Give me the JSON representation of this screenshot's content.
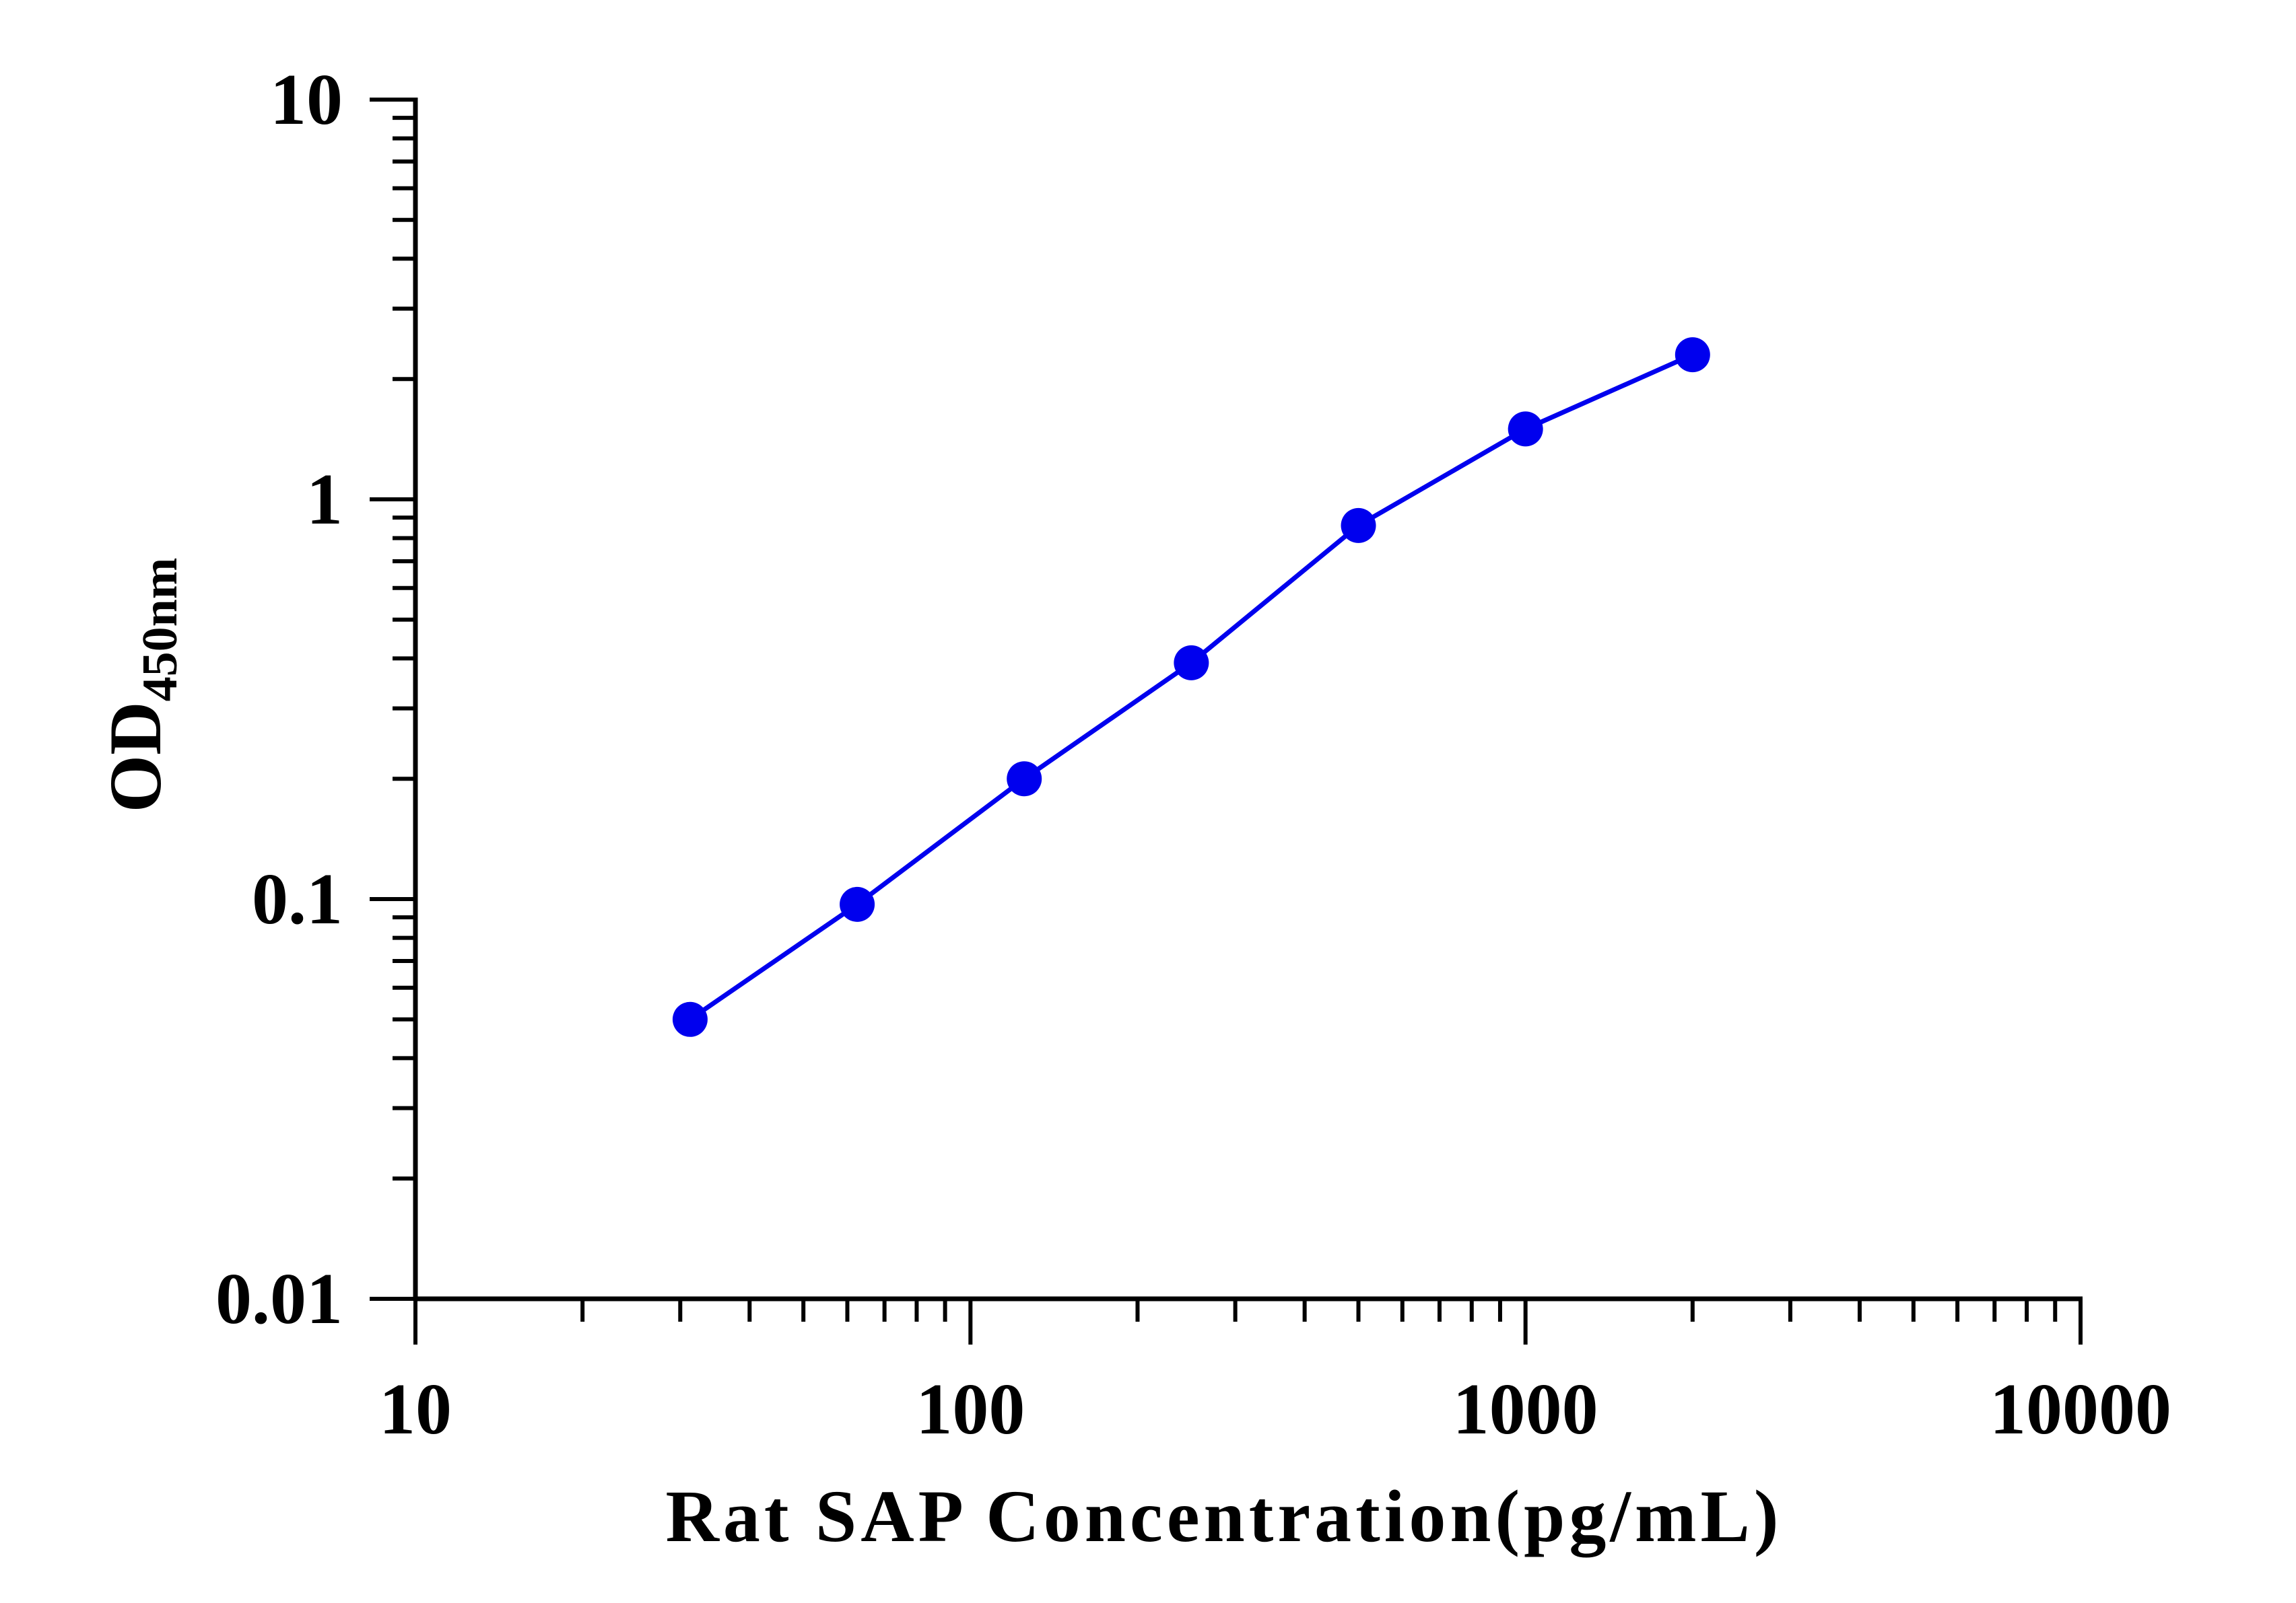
{
  "chart_data": {
    "type": "line",
    "xscale": "log",
    "yscale": "log",
    "xlim": [
      10,
      10000
    ],
    "ylim": [
      0.01,
      10
    ],
    "xticks": [
      "10",
      "100",
      "1000",
      "10000"
    ],
    "yticks": [
      "0.01",
      "0.1",
      "1",
      "10"
    ],
    "xlabel": "Rat SAP Concentration(pg/mL)",
    "ylabel_main": "OD",
    "ylabel_sub": "450nm",
    "grid": false,
    "legend": "none",
    "series": [
      {
        "color": "#0000ee",
        "x": [
          31.25,
          62.5,
          125,
          250,
          500,
          1000,
          2000
        ],
        "y": [
          0.05,
          0.097,
          0.2,
          0.39,
          0.86,
          1.5,
          2.3
        ]
      }
    ]
  }
}
